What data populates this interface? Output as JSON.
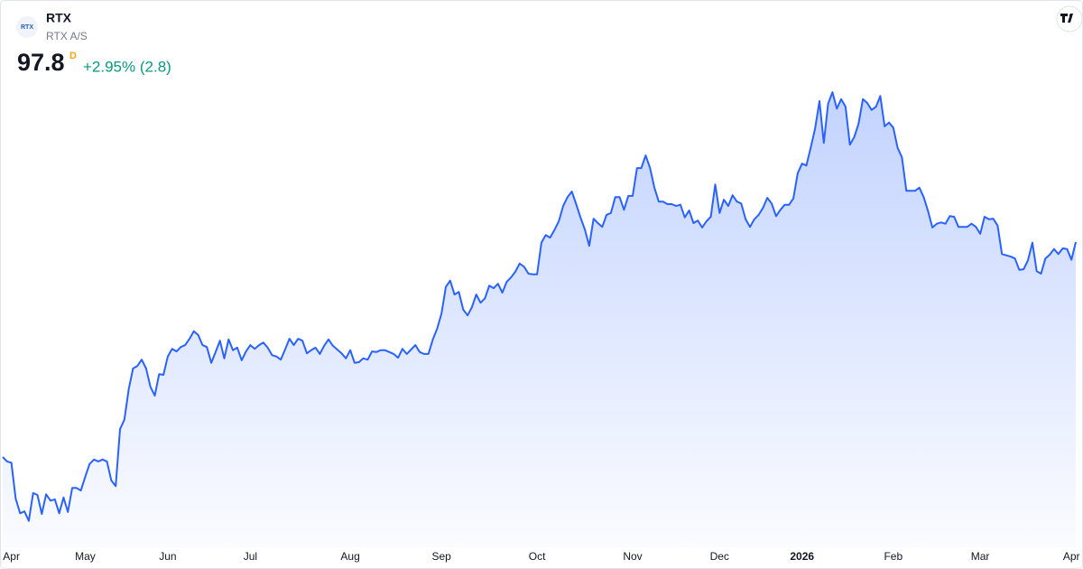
{
  "chart_data": {
    "type": "area",
    "symbol": "RTX",
    "logo_text": "RTX",
    "company": "RTX A/S",
    "last_price": "97.8",
    "interval": "D",
    "change": "+2.95% (2.8)",
    "color": "#2962ff",
    "values": [
      63.8,
      63.1,
      62.9,
      57.2,
      54.9,
      55.2,
      53.7,
      58.1,
      57.8,
      54.8,
      57.9,
      56.9,
      57.1,
      54.9,
      57.4,
      55.1,
      58.9,
      58.9,
      58.5,
      60.7,
      62.7,
      63.4,
      63.1,
      63.4,
      63.1,
      60.1,
      59.2,
      68.2,
      69.7,
      74.5,
      77.8,
      78.2,
      79.2,
      77.8,
      74.9,
      73.5,
      76.9,
      76.8,
      79.7,
      80.9,
      80.5,
      81.2,
      81.5,
      82.5,
      83.7,
      83.1,
      81.5,
      81.2,
      78.7,
      80.4,
      82.2,
      79.4,
      82.4,
      80.7,
      81.1,
      79.1,
      80.5,
      81.5,
      80.9,
      81.5,
      81.9,
      81.1,
      79.9,
      79.7,
      79.2,
      80.8,
      82.5,
      81.5,
      82.5,
      82.2,
      80.2,
      80.7,
      81.1,
      80.1,
      81.4,
      82.4,
      81.4,
      80.8,
      80.2,
      79.4,
      80.7,
      78.7,
      78.8,
      79.4,
      79.2,
      80.5,
      80.4,
      80.7,
      80.7,
      80.4,
      80.1,
      79.5,
      80.9,
      80.1,
      80.8,
      81.5,
      80.4,
      80.1,
      80.1,
      82.4,
      84.1,
      86.5,
      90.7,
      91.7,
      89.5,
      89.9,
      87.1,
      86.2,
      87.5,
      89.5,
      88.2,
      88.9,
      90.9,
      90.5,
      91.2,
      89.8,
      91.5,
      92.2,
      93.1,
      94.4,
      93.9,
      92.8,
      92.7,
      92.7,
      97.7,
      98.9,
      98.5,
      99.7,
      101.1,
      103.5,
      104.9,
      105.8,
      103.8,
      101.7,
      99.8,
      97.2,
      101.5,
      100.8,
      100.2,
      102.1,
      102.4,
      104.9,
      104.9,
      102.9,
      105.1,
      105.1,
      109.5,
      109.5,
      111.5,
      109.5,
      106.4,
      104.2,
      104.2,
      103.8,
      103.8,
      103.5,
      103.7,
      101.7,
      102.8,
      100.8,
      101.2,
      100.1,
      101.1,
      101.8,
      106.9,
      102.4,
      104.5,
      103.5,
      105.2,
      104.2,
      103.9,
      101.4,
      100.2,
      101.4,
      102.1,
      103.2,
      104.8,
      103.9,
      101.9,
      102.9,
      103.7,
      103.7,
      104.7,
      108.7,
      110.2,
      109.9,
      112.8,
      115.8,
      120.1,
      113.5,
      119.7,
      121.5,
      118.9,
      120.4,
      119.2,
      113.2,
      114.4,
      116.5,
      120.4,
      119.8,
      118.7,
      119.2,
      120.9,
      116.1,
      116.7,
      115.9,
      112.7,
      111.2,
      105.9,
      105.9,
      105.9,
      106.4,
      104.9,
      102.7,
      100.1,
      100.7,
      100.9,
      100.7,
      101.9,
      101.8,
      100.2,
      100.2,
      100.2,
      100.7,
      100.2,
      99.1,
      101.8,
      101.4,
      101.5,
      100.4,
      95.9,
      95.7,
      95.5,
      95.2,
      93.4,
      93.5,
      94.9,
      97.7,
      93.2,
      92.8,
      95.2,
      95.8,
      96.7,
      95.9,
      96.8,
      96.7,
      95.0,
      97.8
    ],
    "xlim": [
      0,
      247
    ],
    "xticks": [
      {
        "value": 2,
        "label": "Apr"
      },
      {
        "value": 19,
        "label": "May"
      },
      {
        "value": 38,
        "label": "Jun"
      },
      {
        "value": 57,
        "label": "Jul"
      },
      {
        "value": 80,
        "label": "Aug"
      },
      {
        "value": 101,
        "label": "Sep"
      },
      {
        "value": 123,
        "label": "Oct"
      },
      {
        "value": 145,
        "label": "Nov"
      },
      {
        "value": 165,
        "label": "Dec"
      },
      {
        "value": 184,
        "label": "2026"
      },
      {
        "value": 205,
        "label": "Feb"
      },
      {
        "value": 225,
        "label": "Mar"
      },
      {
        "value": 246,
        "label": "Apr"
      }
    ],
    "ylim": [
      46.2,
      130
    ]
  }
}
